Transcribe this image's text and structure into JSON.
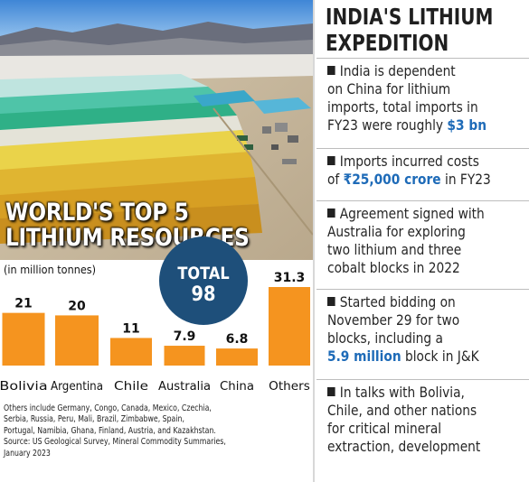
{
  "left": {
    "overlay_title": [
      "WORLD'S TOP 5",
      "LITHIUM RESOURCES"
    ],
    "unit_label": "(in million tonnes)",
    "total": {
      "label": "TOTAL",
      "value": "98"
    },
    "footnote_lines": [
      "Others include  Germany, Congo, Canada, Mexico, Czechia,",
      "Serbia, Russia, Peru, Mali, Brazil, Zimbabwe, Spain,",
      "Portugal, Namibia, Ghana, Finland, Austria, and Kazakhstan.",
      "Source: US Geological Survey, Mineral Commodity Summaries,",
      "January 2023"
    ]
  },
  "chart_data": {
    "type": "bar",
    "title": "WORLD'S TOP 5 LITHIUM RESOURCES",
    "ylabel": "(in million tonnes)",
    "categories": [
      "Bolivia",
      "Argentina",
      "Chile",
      "Australia",
      "China",
      "Others"
    ],
    "values": [
      21,
      20,
      11,
      7.9,
      6.8,
      31.3
    ],
    "value_labels": [
      "21",
      "20",
      "11",
      "7.9",
      "6.8",
      "31.3"
    ],
    "ylim": [
      0,
      31.3
    ],
    "grid": false,
    "bar_color": "#f5941f"
  },
  "right": {
    "title": [
      "INDIA'S LITHIUM",
      "EXPEDITION"
    ],
    "points": [
      {
        "lines": [
          "India is dependent",
          "on China for lithium",
          "imports, total imports in"
        ],
        "last_plain": "FY23 were roughly ",
        "last_highlight": "$3 bn",
        "last_suffix": ""
      },
      {
        "lines": [
          "Imports incurred costs"
        ],
        "last_plain": "of ",
        "last_highlight": "₹25,000 crore",
        "last_suffix": " in FY23"
      },
      {
        "lines": [
          "Agreement signed with",
          "Australia for exploring",
          "two lithium and three",
          "cobalt blocks in 2022"
        ],
        "last_plain": "",
        "last_highlight": "",
        "last_suffix": ""
      },
      {
        "lines": [
          "Started bidding on",
          "November 29 for two",
          "blocks, including a"
        ],
        "last_plain": "",
        "last_highlight": "5.9 million",
        "last_suffix": " block in J&K"
      },
      {
        "lines": [
          "In talks with Bolivia,",
          "Chile, and other nations",
          "for critical mineral",
          "extraction, development"
        ],
        "last_plain": "",
        "last_highlight": "",
        "last_suffix": ""
      }
    ],
    "highlight_color": "#1e6bb8"
  }
}
